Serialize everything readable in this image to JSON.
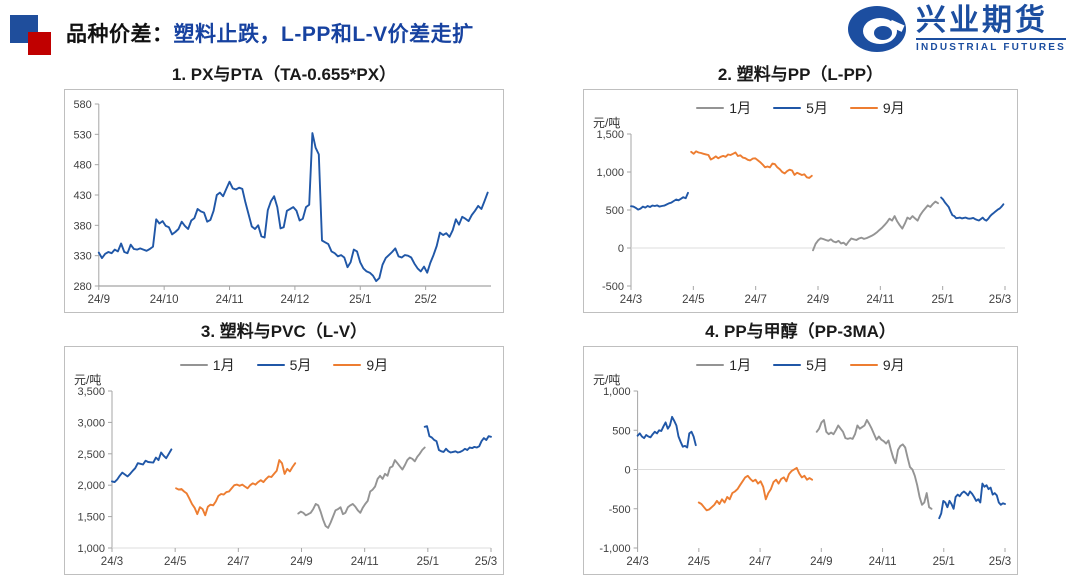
{
  "header": {
    "title_prefix": "品种价差：",
    "title_highlight": "塑料止跌，L-PP和L-V价差走扩",
    "logo_cn": "兴业期货",
    "logo_en": "INDUSTRIAL FUTURES"
  },
  "colors": {
    "blue": "#2057A7",
    "orange": "#ED7D31",
    "gray": "#949494",
    "title_blue": "#1742A0",
    "square_blue": "#1F4E9C",
    "square_red": "#C00000",
    "logo_blue": "#1C4EA0",
    "tick_text": "#404040",
    "axis_line": "#A6A6A6"
  },
  "chart_data": [
    {
      "type": "line",
      "title": "1. PX与PTA（TA-0.655*PX）",
      "unit": "",
      "y_min": 280,
      "y_max": 580,
      "y_step": 50,
      "t_max": 6,
      "axis_value": 280,
      "baseline_shade": "dark",
      "x_ticks": [
        {
          "t": 0,
          "label": "24/9"
        },
        {
          "t": 1,
          "label": "24/10"
        },
        {
          "t": 2,
          "label": "24/11"
        },
        {
          "t": 3,
          "label": "24/12"
        },
        {
          "t": 4,
          "label": "25/1"
        },
        {
          "t": 5,
          "label": "25/2"
        }
      ],
      "series": [
        {
          "name": "",
          "color": "blue",
          "segments": [
            {
              "t0": 0,
              "t1": 5.95,
              "values": [
                335,
                326,
                333,
                336,
                334,
                340,
                337,
                350,
                336,
                334,
                348,
                341,
                340,
                342,
                340,
                338,
                341,
                345,
                390,
                383,
                387,
                379,
                377,
                365,
                369,
                374,
                386,
                379,
                374,
                388,
                392,
                407,
                403,
                401,
                386,
                389,
                404,
                430,
                434,
                428,
                440,
                452,
                441,
                439,
                442,
                440,
                418,
                398,
                378,
                374,
                380,
                362,
                360,
                405,
                420,
                428,
                410,
                375,
                377,
                404,
                407,
                410,
                404,
                388,
                391,
                410,
                414,
                532,
                508,
                497,
                355,
                352,
                349,
                337,
                334,
                329,
                331,
                327,
                311,
                319,
                340,
                337,
                319,
                309,
                304,
                302,
                297,
                288,
                293,
                315,
                326,
                331,
                336,
                342,
                329,
                327,
                331,
                330,
                327,
                317,
                309,
                304,
                312,
                302,
                318,
                331,
                346,
                368,
                364,
                367,
                361,
                372,
                390,
                381,
                394,
                391,
                387,
                397,
                404,
                412,
                407,
                420,
                434
              ]
            }
          ]
        }
      ]
    },
    {
      "type": "line",
      "title": "2. 塑料与PP（L-PP）",
      "unit": "元/吨",
      "y_min": -500,
      "y_max": 1500,
      "y_step": 500,
      "t_max": 12,
      "axis_value": 0,
      "baseline_shade": "light",
      "x_ticks": [
        {
          "t": 0,
          "label": "24/3"
        },
        {
          "t": 2,
          "label": "24/5"
        },
        {
          "t": 4,
          "label": "24/7"
        },
        {
          "t": 6,
          "label": "24/9"
        },
        {
          "t": 8,
          "label": "24/11"
        },
        {
          "t": 10,
          "label": "25/1"
        },
        {
          "t": 12,
          "label": "25/3"
        }
      ],
      "series": [
        {
          "name": "1月",
          "color": "gray",
          "segments": [
            {
              "t0": 5.84,
              "t1": 9.85,
              "values": [
                -30,
                55,
                100,
                128,
                118,
                105,
                95,
                115,
                85,
                75,
                95,
                60,
                70,
                40,
                85,
                125,
                115,
                105,
                125,
                135,
                120,
                130,
                145,
                160,
                180,
                205,
                235,
                265,
                300,
                340,
                385,
                360,
                420,
                350,
                300,
                255,
                320,
                400,
                380,
                420,
                390,
                360,
                430,
                480,
                520,
                560,
                540,
                580,
                610,
                590
              ]
            }
          ]
        },
        {
          "name": "5月",
          "color": "blue",
          "segments": [
            {
              "t0": 0,
              "t1": 1.83,
              "values": [
                550,
                545,
                528,
                505,
                518,
                545,
                532,
                552,
                540,
                558,
                552,
                560,
                545,
                553,
                558,
                572,
                588,
                598,
                618,
                638,
                628,
                648,
                668,
                655,
                725
              ]
            },
            {
              "t0": 9.95,
              "t1": 11.95,
              "values": [
                665,
                640,
                600,
                570,
                540,
                480,
                432,
                420,
                392,
                396,
                400,
                390,
                396,
                400,
                390,
                386,
                390,
                396,
                380,
                370,
                362,
                380,
                400,
                372,
                360,
                385,
                420,
                445,
                465,
                485,
                505,
                520,
                545,
                575
              ]
            }
          ]
        },
        {
          "name": "9月",
          "color": "orange",
          "segments": [
            {
              "t0": 1.93,
              "t1": 5.8,
              "values": [
                1265,
                1240,
                1272,
                1256,
                1250,
                1240,
                1232,
                1224,
                1165,
                1182,
                1205,
                1180,
                1200,
                1212,
                1200,
                1230,
                1224,
                1240,
                1256,
                1210,
                1220,
                1190,
                1182,
                1160,
                1152,
                1176,
                1180,
                1156,
                1130,
                1100,
                1062,
                1072,
                1060,
                1110,
                1104,
                1062,
                1035,
                1000,
                982,
                1012,
                1030,
                1020,
                962,
                990,
                975,
                960,
                970,
                930,
                922,
                950
              ]
            }
          ]
        }
      ]
    },
    {
      "type": "line",
      "title": "3. 塑料与PVC（L-V）",
      "unit": "元/吨",
      "y_min": 1000,
      "y_max": 3500,
      "y_step": 500,
      "t_max": 12,
      "axis_value": 1000,
      "baseline_shade": "light",
      "x_ticks": [
        {
          "t": 0,
          "label": "24/3"
        },
        {
          "t": 2,
          "label": "24/5"
        },
        {
          "t": 4,
          "label": "24/7"
        },
        {
          "t": 6,
          "label": "24/9"
        },
        {
          "t": 8,
          "label": "24/11"
        },
        {
          "t": 10,
          "label": "25/1"
        },
        {
          "t": 12,
          "label": "25/3"
        }
      ],
      "series": [
        {
          "name": "1月",
          "color": "gray",
          "segments": [
            {
              "t0": 5.9,
              "t1": 9.9,
              "values": [
                1550,
                1580,
                1560,
                1520,
                1540,
                1560,
                1620,
                1700,
                1680,
                1580,
                1450,
                1350,
                1320,
                1400,
                1500,
                1600,
                1620,
                1650,
                1540,
                1560,
                1650,
                1680,
                1700,
                1660,
                1600,
                1560,
                1640,
                1700,
                1750,
                1900,
                1930,
                1980,
                2100,
                2150,
                2100,
                2180,
                2150,
                2280,
                2300,
                2400,
                2350,
                2300,
                2250,
                2320,
                2400,
                2440,
                2420,
                2380,
                2450,
                2500,
                2560,
                2600
              ]
            }
          ]
        },
        {
          "name": "5月",
          "color": "blue",
          "segments": [
            {
              "t0": 0,
              "t1": 1.88,
              "values": [
                2060,
                2050,
                2090,
                2150,
                2200,
                2170,
                2140,
                2180,
                2230,
                2270,
                2350,
                2340,
                2330,
                2390,
                2370,
                2365,
                2360,
                2440,
                2400,
                2520,
                2470,
                2430,
                2500,
                2570
              ]
            },
            {
              "t0": 9.9,
              "t1": 12,
              "values": [
                2930,
                2940,
                2780,
                2760,
                2720,
                2700,
                2560,
                2540,
                2530,
                2580,
                2540,
                2520,
                2530,
                2540,
                2520,
                2530,
                2550,
                2580,
                2560,
                2600,
                2590,
                2610,
                2600,
                2620,
                2700,
                2750,
                2720,
                2780,
                2770
              ]
            }
          ]
        },
        {
          "name": "9月",
          "color": "orange",
          "segments": [
            {
              "t0": 2.03,
              "t1": 5.8,
              "values": [
                1950,
                1930,
                1940,
                1900,
                1870,
                1790,
                1700,
                1640,
                1540,
                1650,
                1620,
                1520,
                1660,
                1690,
                1680,
                1740,
                1830,
                1860,
                1850,
                1890,
                1900,
                1950,
                2000,
                2010,
                1990,
                2010,
                1980,
                1950,
                2000,
                2030,
                2010,
                2050,
                2080,
                2050,
                2100,
                2140,
                2130,
                2180,
                2230,
                2400,
                2350,
                2180,
                2260,
                2220,
                2290,
                2350
              ]
            }
          ]
        }
      ]
    },
    {
      "type": "line",
      "title": "4. PP与甲醇（PP-3MA）",
      "unit": "元/吨",
      "y_min": -1000,
      "y_max": 1000,
      "y_step": 500,
      "t_max": 12,
      "axis_value": 0,
      "baseline_shade": "light",
      "x_ticks": [
        {
          "t": 0,
          "label": "24/3"
        },
        {
          "t": 2,
          "label": "24/5"
        },
        {
          "t": 4,
          "label": "24/7"
        },
        {
          "t": 6,
          "label": "24/9"
        },
        {
          "t": 8,
          "label": "24/11"
        },
        {
          "t": 10,
          "label": "25/1"
        },
        {
          "t": 12,
          "label": "25/3"
        }
      ],
      "series": [
        {
          "name": "1月",
          "color": "gray",
          "segments": [
            {
              "t0": 5.85,
              "t1": 9.6,
              "values": [
                480,
                520,
                600,
                630,
                480,
                450,
                470,
                450,
                500,
                560,
                520,
                480,
                400,
                390,
                400,
                390,
                450,
                560,
                520,
                540,
                560,
                630,
                580,
                520,
                450,
                380,
                420,
                380,
                360,
                330,
                370,
                250,
                150,
                80,
                250,
                300,
                320,
                280,
                150,
                30,
                0,
                -80,
                -200,
                -350,
                -450,
                -420,
                -300,
                -480,
                -500
              ]
            }
          ]
        },
        {
          "name": "5月",
          "color": "blue",
          "segments": [
            {
              "t0": 0,
              "t1": 1.9,
              "values": [
                430,
                460,
                420,
                400,
                440,
                420,
                410,
                450,
                480,
                460,
                500,
                490,
                550,
                600,
                520,
                560,
                670,
                620,
                560,
                420,
                350,
                290,
                300,
                280,
                460,
                480,
                420,
                310
              ]
            },
            {
              "t0": 9.85,
              "t1": 12,
              "values": [
                -620,
                -560,
                -400,
                -420,
                -480,
                -400,
                -440,
                -500,
                -350,
                -320,
                -340,
                -300,
                -280,
                -300,
                -330,
                -280,
                -310,
                -350,
                -400,
                -380,
                -420,
                -180,
                -220,
                -200,
                -250,
                -230,
                -320,
                -300,
                -330,
                -420,
                -450,
                -430,
                -440
              ]
            }
          ]
        },
        {
          "name": "9月",
          "color": "orange",
          "segments": [
            {
              "t0": 2.0,
              "t1": 5.7,
              "values": [
                -420,
                -440,
                -480,
                -520,
                -510,
                -480,
                -450,
                -400,
                -440,
                -380,
                -420,
                -350,
                -380,
                -300,
                -280,
                -250,
                -200,
                -150,
                -100,
                -80,
                -120,
                -150,
                -130,
                -180,
                -150,
                -220,
                -380,
                -300,
                -250,
                -160,
                -130,
                -180,
                -120,
                -100,
                -150,
                -60,
                -20,
                0,
                20,
                -50,
                -100,
                -80,
                -130,
                -110,
                -130
              ]
            }
          ]
        }
      ]
    }
  ]
}
